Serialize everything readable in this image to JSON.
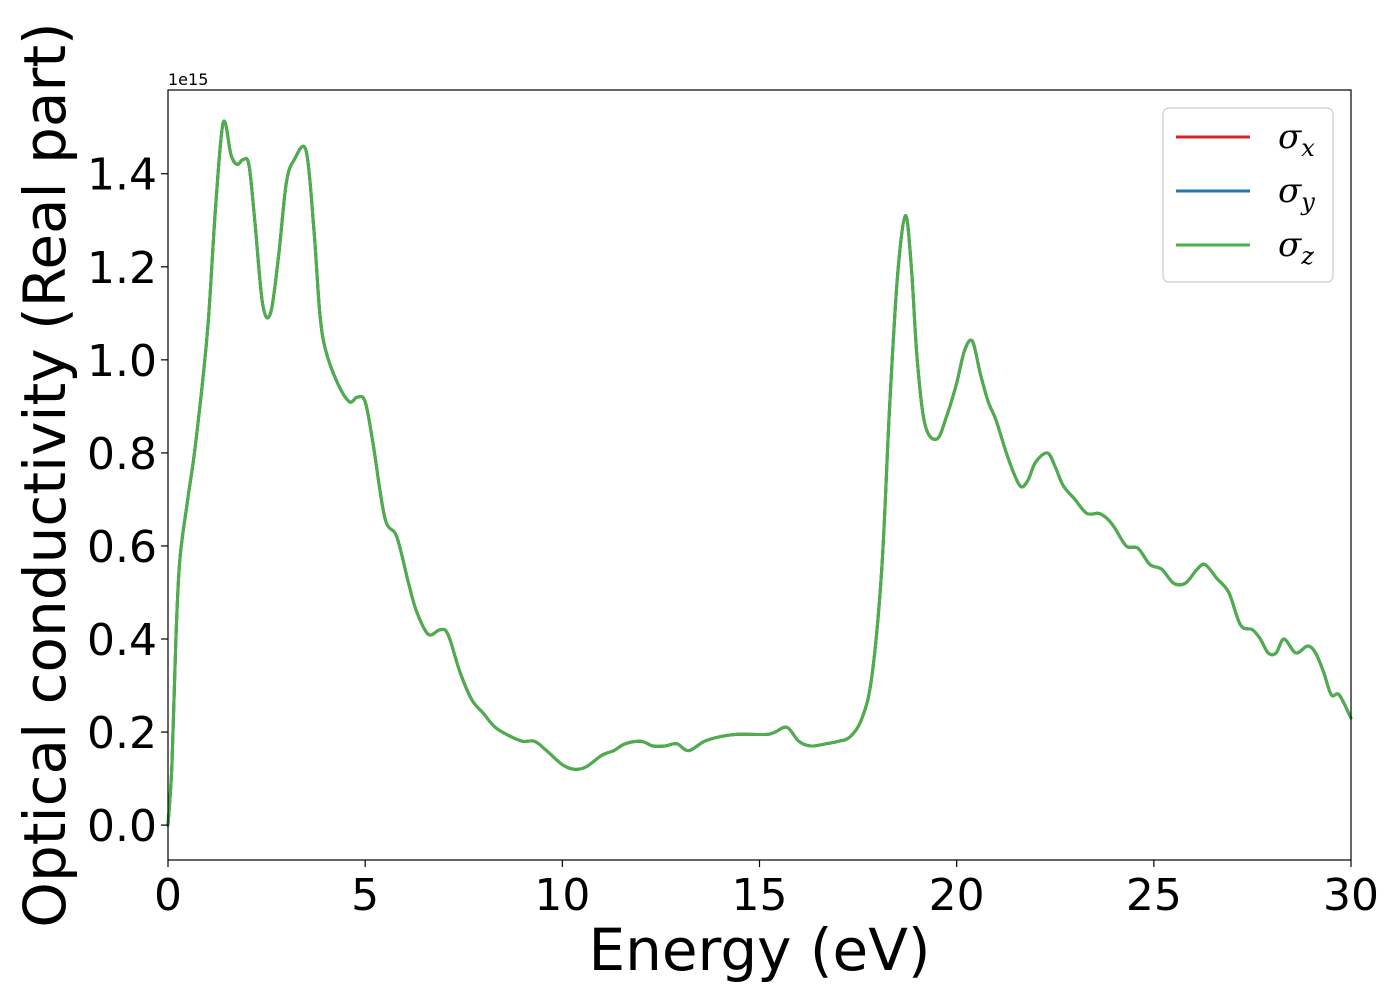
{
  "chart_data": {
    "type": "line",
    "title": "",
    "xlabel": "Energy (eV)",
    "ylabel": "Optical conductivity (Real part)",
    "y_offset_text": "1e15",
    "xlim": [
      0,
      30
    ],
    "ylim": [
      -0.075,
      1.58
    ],
    "x_ticks": [
      0,
      5,
      10,
      15,
      20,
      25,
      30
    ],
    "x_tick_labels": [
      "0",
      "5",
      "10",
      "15",
      "20",
      "25",
      "30"
    ],
    "y_ticks": [
      0.0,
      0.2,
      0.4,
      0.6,
      0.8,
      1.0,
      1.2,
      1.4
    ],
    "y_tick_labels": [
      "0.0",
      "0.2",
      "0.4",
      "0.6",
      "0.8",
      "1.0",
      "1.2",
      "1.4"
    ],
    "grid": false,
    "legend_position": "top-right",
    "x": [
      0,
      0.1,
      0.2,
      0.3,
      0.5,
      0.7,
      1.0,
      1.2,
      1.4,
      1.6,
      1.75,
      1.9,
      2.05,
      2.2,
      2.4,
      2.6,
      2.8,
      3.0,
      3.2,
      3.5,
      3.7,
      3.85,
      4.0,
      4.3,
      4.6,
      4.8,
      5.0,
      5.2,
      5.5,
      5.8,
      6.1,
      6.3,
      6.6,
      6.9,
      7.1,
      7.4,
      7.7,
      8.0,
      8.3,
      8.7,
      9.0,
      9.3,
      9.6,
      10.0,
      10.3,
      10.6,
      11.0,
      11.3,
      11.6,
      12.0,
      12.3,
      12.6,
      12.9,
      13.2,
      13.6,
      14.0,
      14.4,
      14.8,
      15.2,
      15.4,
      15.7,
      16.0,
      16.3,
      16.7,
      17.0,
      17.3,
      17.6,
      17.85,
      18.1,
      18.3,
      18.5,
      18.7,
      18.85,
      19.0,
      19.2,
      19.5,
      19.75,
      20.0,
      20.2,
      20.4,
      20.6,
      20.8,
      21.0,
      21.3,
      21.6,
      21.8,
      22.0,
      22.3,
      22.5,
      22.7,
      23.0,
      23.3,
      23.6,
      23.8,
      24.0,
      24.3,
      24.6,
      24.9,
      25.2,
      25.5,
      25.8,
      26.1,
      26.3,
      26.6,
      26.9,
      27.2,
      27.5,
      27.7,
      27.9,
      28.1,
      28.3,
      28.6,
      28.9,
      29.1,
      29.3,
      29.5,
      29.7,
      30.0
    ],
    "series": [
      {
        "name": "σx",
        "color": "#d62728",
        "values": [
          0.0,
          0.13,
          0.4,
          0.57,
          0.7,
          0.82,
          1.06,
          1.32,
          1.51,
          1.44,
          1.42,
          1.43,
          1.42,
          1.3,
          1.12,
          1.1,
          1.22,
          1.38,
          1.43,
          1.45,
          1.28,
          1.1,
          1.02,
          0.95,
          0.91,
          0.92,
          0.91,
          0.82,
          0.66,
          0.62,
          0.52,
          0.46,
          0.41,
          0.42,
          0.41,
          0.33,
          0.27,
          0.24,
          0.21,
          0.19,
          0.18,
          0.18,
          0.16,
          0.13,
          0.12,
          0.125,
          0.15,
          0.16,
          0.175,
          0.18,
          0.17,
          0.17,
          0.175,
          0.16,
          0.18,
          0.19,
          0.195,
          0.195,
          0.195,
          0.2,
          0.21,
          0.18,
          0.17,
          0.175,
          0.18,
          0.19,
          0.23,
          0.32,
          0.55,
          0.9,
          1.18,
          1.31,
          1.2,
          1.0,
          0.86,
          0.83,
          0.88,
          0.95,
          1.02,
          1.04,
          0.97,
          0.91,
          0.87,
          0.79,
          0.73,
          0.74,
          0.78,
          0.8,
          0.77,
          0.73,
          0.7,
          0.67,
          0.67,
          0.66,
          0.64,
          0.6,
          0.595,
          0.56,
          0.55,
          0.52,
          0.52,
          0.55,
          0.56,
          0.53,
          0.5,
          0.43,
          0.42,
          0.4,
          0.37,
          0.37,
          0.4,
          0.37,
          0.385,
          0.37,
          0.33,
          0.28,
          0.28,
          0.23
        ]
      },
      {
        "name": "σy",
        "color": "#1f77b4",
        "values": [
          0.0,
          0.13,
          0.4,
          0.57,
          0.7,
          0.82,
          1.06,
          1.32,
          1.51,
          1.44,
          1.42,
          1.43,
          1.42,
          1.3,
          1.12,
          1.1,
          1.22,
          1.38,
          1.43,
          1.45,
          1.28,
          1.1,
          1.02,
          0.95,
          0.91,
          0.92,
          0.91,
          0.82,
          0.66,
          0.62,
          0.52,
          0.46,
          0.41,
          0.42,
          0.41,
          0.33,
          0.27,
          0.24,
          0.21,
          0.19,
          0.18,
          0.18,
          0.16,
          0.13,
          0.12,
          0.125,
          0.15,
          0.16,
          0.175,
          0.18,
          0.17,
          0.17,
          0.175,
          0.16,
          0.18,
          0.19,
          0.195,
          0.195,
          0.195,
          0.2,
          0.21,
          0.18,
          0.17,
          0.175,
          0.18,
          0.19,
          0.23,
          0.32,
          0.55,
          0.9,
          1.18,
          1.31,
          1.2,
          1.0,
          0.86,
          0.83,
          0.88,
          0.95,
          1.02,
          1.04,
          0.97,
          0.91,
          0.87,
          0.79,
          0.73,
          0.74,
          0.78,
          0.8,
          0.77,
          0.73,
          0.7,
          0.67,
          0.67,
          0.66,
          0.64,
          0.6,
          0.595,
          0.56,
          0.55,
          0.52,
          0.52,
          0.55,
          0.56,
          0.53,
          0.5,
          0.43,
          0.42,
          0.4,
          0.37,
          0.37,
          0.4,
          0.37,
          0.385,
          0.37,
          0.33,
          0.28,
          0.28,
          0.23
        ]
      },
      {
        "name": "σz",
        "color": "#4daf4a",
        "values": [
          0.0,
          0.13,
          0.4,
          0.57,
          0.7,
          0.82,
          1.06,
          1.32,
          1.51,
          1.44,
          1.42,
          1.43,
          1.42,
          1.3,
          1.12,
          1.1,
          1.22,
          1.38,
          1.43,
          1.45,
          1.28,
          1.1,
          1.02,
          0.95,
          0.91,
          0.92,
          0.91,
          0.82,
          0.66,
          0.62,
          0.52,
          0.46,
          0.41,
          0.42,
          0.41,
          0.33,
          0.27,
          0.24,
          0.21,
          0.19,
          0.18,
          0.18,
          0.16,
          0.13,
          0.12,
          0.125,
          0.15,
          0.16,
          0.175,
          0.18,
          0.17,
          0.17,
          0.175,
          0.16,
          0.18,
          0.19,
          0.195,
          0.195,
          0.195,
          0.2,
          0.21,
          0.18,
          0.17,
          0.175,
          0.18,
          0.19,
          0.23,
          0.32,
          0.55,
          0.9,
          1.18,
          1.31,
          1.2,
          1.0,
          0.86,
          0.83,
          0.88,
          0.95,
          1.02,
          1.04,
          0.97,
          0.91,
          0.87,
          0.79,
          0.73,
          0.74,
          0.78,
          0.8,
          0.77,
          0.73,
          0.7,
          0.67,
          0.67,
          0.66,
          0.64,
          0.6,
          0.595,
          0.56,
          0.55,
          0.52,
          0.52,
          0.55,
          0.56,
          0.53,
          0.5,
          0.43,
          0.42,
          0.4,
          0.37,
          0.37,
          0.4,
          0.37,
          0.385,
          0.37,
          0.33,
          0.28,
          0.28,
          0.23
        ]
      }
    ],
    "legend": [
      {
        "symbol": "σ",
        "subscript": "x",
        "color": "#d62728"
      },
      {
        "symbol": "σ",
        "subscript": "y",
        "color": "#1f77b4"
      },
      {
        "symbol": "σ",
        "subscript": "z",
        "color": "#4daf4a"
      }
    ]
  }
}
